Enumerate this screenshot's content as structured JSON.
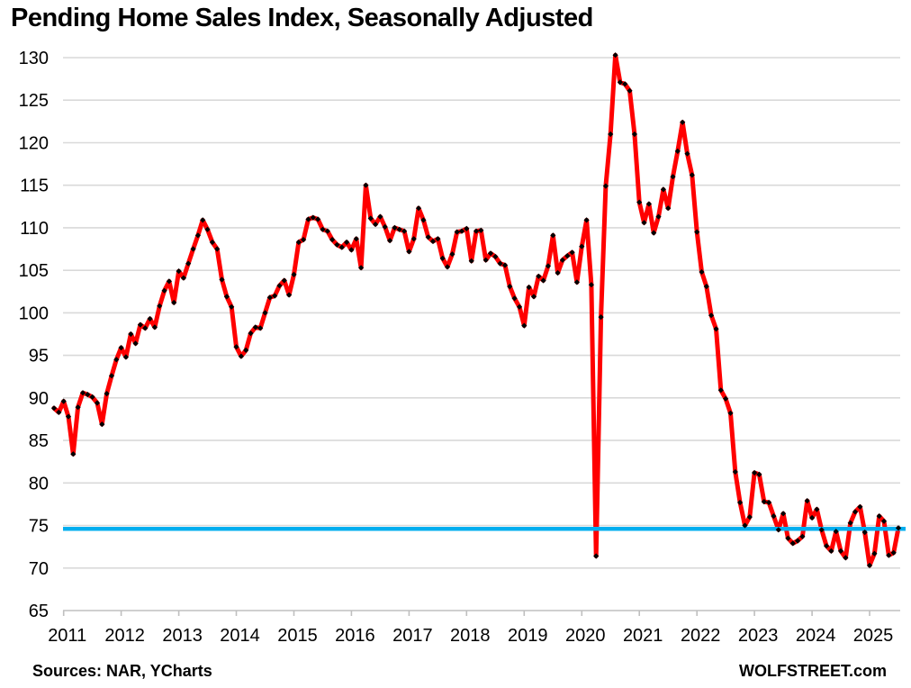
{
  "title": "Pending Home Sales Index, Seasonally Adjusted",
  "footer": {
    "sources": "Sources: NAR, YCharts",
    "brand": "WOLFSTREET.com"
  },
  "colors": {
    "axis": "#BFBFBF",
    "gridline": "#D9D9D9",
    "text": "#000000"
  },
  "chart_data": {
    "type": "line",
    "title": "Pending Home Sales Index, Seasonally Adjusted",
    "frequency": "monthly",
    "x_start": "2010-11",
    "x_end": "2025-07",
    "ylim": [
      65,
      130
    ],
    "ytick_step": 5,
    "xticks": [
      2011,
      2012,
      2013,
      2014,
      2015,
      2016,
      2017,
      2018,
      2019,
      2020,
      2021,
      2022,
      2023,
      2024,
      2025
    ],
    "grid": "horizontal",
    "legend": "none",
    "reference_line": {
      "value": 74.6,
      "color": "#00AEEF"
    },
    "series": [
      {
        "name": "Pending Home Sales Index",
        "color": "#FF0000",
        "marker_color": "#000000",
        "values": [
          88.8,
          88.3,
          89.6,
          87.8,
          83.4,
          88.9,
          90.6,
          90.4,
          90.1,
          89.4,
          86.9,
          90.5,
          92.6,
          94.5,
          95.9,
          94.8,
          97.5,
          96.4,
          98.6,
          98.2,
          99.3,
          98.3,
          100.8,
          102.6,
          103.7,
          101.2,
          104.9,
          104.1,
          105.8,
          107.5,
          109.1,
          110.9,
          109.8,
          108.3,
          107.5,
          103.9,
          101.9,
          100.7,
          96.0,
          94.9,
          95.6,
          97.6,
          98.3,
          98.2,
          100.0,
          101.8,
          102.0,
          103.2,
          103.8,
          102.1,
          104.5,
          108.3,
          108.6,
          111.0,
          111.2,
          111.0,
          109.8,
          109.6,
          108.6,
          108.0,
          107.7,
          108.3,
          107.4,
          108.7,
          105.3,
          115.0,
          111.1,
          110.4,
          111.3,
          110.1,
          108.5,
          110.0,
          109.8,
          109.6,
          107.2,
          108.7,
          112.3,
          110.9,
          108.9,
          108.4,
          108.7,
          106.4,
          105.4,
          106.9,
          109.5,
          109.6,
          109.9,
          106.1,
          109.6,
          109.7,
          106.2,
          107.0,
          106.6,
          105.8,
          105.6,
          103.1,
          101.7,
          100.7,
          98.5,
          103.0,
          101.9,
          104.3,
          103.8,
          105.5,
          109.1,
          104.7,
          106.2,
          106.7,
          107.1,
          103.6,
          107.8,
          110.9,
          103.3,
          71.4,
          99.5,
          114.9,
          121.0,
          130.3,
          127.1,
          126.9,
          126.1,
          121.0,
          113.0,
          110.6,
          112.8,
          109.4,
          111.3,
          114.5,
          112.3,
          116.0,
          119.0,
          122.4,
          118.7,
          116.2,
          109.5,
          104.8,
          103.1,
          99.7,
          98.1,
          90.9,
          89.9,
          88.2,
          81.3,
          77.7,
          75.0,
          76.0,
          81.2,
          81.0,
          77.8,
          77.7,
          76.1,
          74.5,
          76.4,
          73.5,
          72.9,
          73.2,
          73.7,
          77.9,
          75.9,
          76.9,
          74.5,
          72.6,
          72.0,
          74.3,
          72.0,
          71.2,
          75.3,
          76.6,
          77.2,
          74.2,
          70.3,
          71.7,
          76.1,
          75.5,
          71.5,
          71.8,
          74.7
        ]
      }
    ]
  }
}
